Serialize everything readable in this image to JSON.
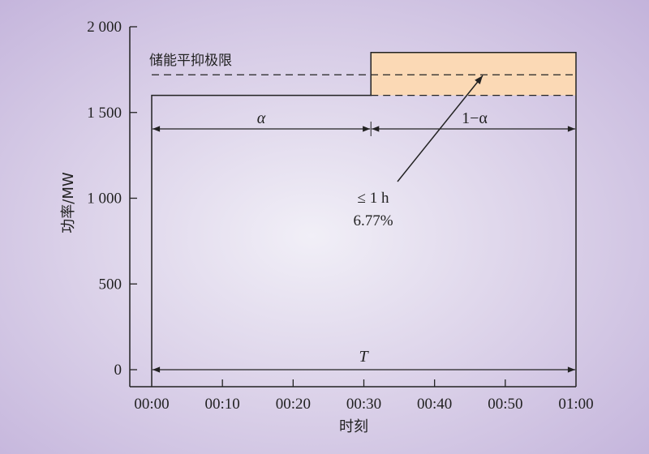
{
  "chart_data": {
    "type": "line",
    "title": "",
    "xlabel": "时刻",
    "ylabel": "功率/MW",
    "x_ticks": [
      "00:00",
      "00:10",
      "00:20",
      "00:30",
      "00:40",
      "00:50",
      "01:00"
    ],
    "y_ticks": [
      "0",
      "500",
      "1 000",
      "1 500",
      "2 000"
    ],
    "xlim_minutes": [
      0,
      60
    ],
    "ylim": [
      0,
      2000
    ],
    "series": [
      {
        "points": [
          [
            0,
            1600
          ],
          [
            31,
            1600
          ],
          [
            31,
            1850
          ],
          [
            60,
            1850
          ]
        ]
      }
    ],
    "storage_limit": {
      "label": "储能平抑极限",
      "value": 1720
    },
    "excess_region": {
      "x": [
        31,
        60
      ],
      "y": [
        1600,
        1850
      ],
      "color": "#fbd9b5"
    },
    "spans": {
      "alpha": "α",
      "one_minus_alpha": "1−α",
      "total": "T"
    },
    "annotation": {
      "line1": "≤ 1 h",
      "line2": "6.77%"
    },
    "grid": false
  }
}
